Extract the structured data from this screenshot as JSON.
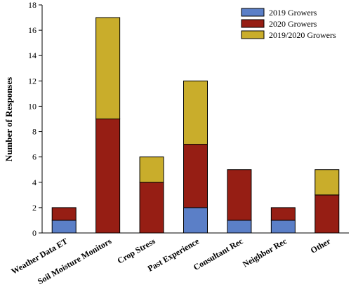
{
  "chart_data": {
    "type": "bar",
    "stacked": true,
    "categories": [
      "Weather Data ET",
      "Soil Moisture Monitors",
      "Crop Stress",
      "Past Experience",
      "Consultant Rec",
      "Neighbor Rec",
      "Other"
    ],
    "series": [
      {
        "name": "2019 Growers",
        "color": "#5b7fc7",
        "values": [
          1,
          0,
          0,
          2,
          1,
          1,
          0
        ]
      },
      {
        "name": "2020 Growers",
        "color": "#961e14",
        "values": [
          1,
          9,
          4,
          5,
          4,
          1,
          3
        ]
      },
      {
        "name": "2019/2020 Growers",
        "color": "#c9ad2b",
        "values": [
          0,
          8,
          2,
          5,
          0,
          0,
          2
        ]
      }
    ],
    "ylabel": "Number of Responses",
    "xlabel": "",
    "ylim": [
      0,
      18
    ],
    "yticks": [
      0,
      2,
      4,
      6,
      8,
      10,
      12,
      14,
      16,
      18
    ],
    "legend_position": "top-right",
    "grid": false
  }
}
